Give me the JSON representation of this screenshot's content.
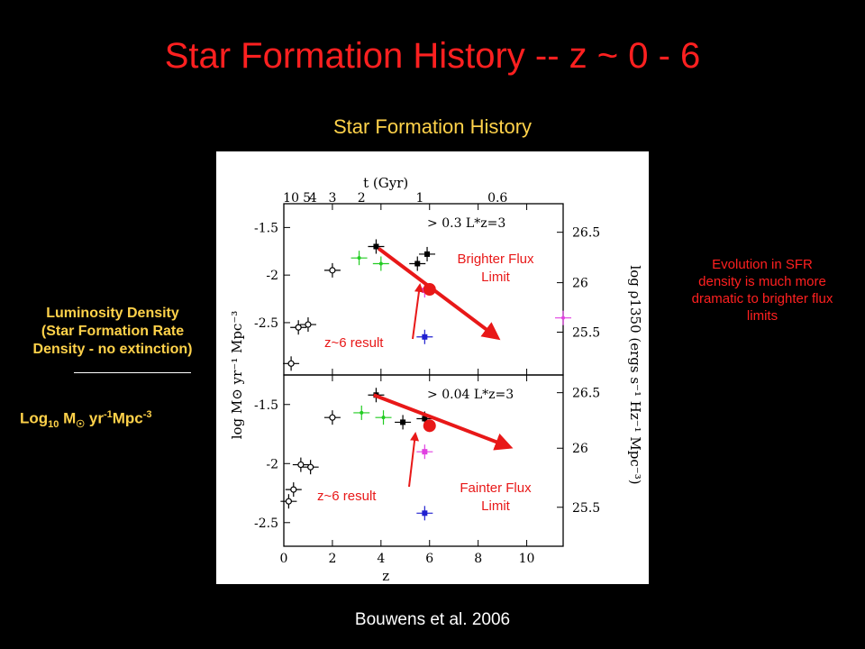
{
  "slide": {
    "title": "Star Formation History -- z ~ 0 - 6",
    "figure_title": "Star Formation History",
    "citation": "Bouwens et al. 2006",
    "left_label_lines": [
      "Luminosity Density",
      "(Star Formation Rate",
      "Density - no extinction)"
    ],
    "left_unit": {
      "log": "Log",
      "log_sub": "10",
      "m": " M",
      "sun": "☉",
      "yr": " yr",
      "yr_exp": "-1",
      "mpc": "Mpc",
      "mpc_exp": "-3"
    },
    "right_note_lines": [
      "Evolution in SFR",
      "density is much more",
      "dramatic to brighter flux",
      "limits"
    ]
  },
  "colors": {
    "title": "#ff2020",
    "yellow": "#ffd24a",
    "arrow": "#e81818",
    "black": "#000000",
    "green": "#22cc22",
    "magenta": "#e040e0",
    "blue": "#2020d0",
    "red": "#e81818"
  },
  "chart_data": {
    "type": "scatter",
    "top_axis": {
      "label": "t (Gyr)",
      "ticks": [
        {
          "t": "10",
          "z": 0.3
        },
        {
          "t": "5",
          "z": 0.95
        },
        {
          "t": "4",
          "z": 1.2
        },
        {
          "t": "3",
          "z": 2.0
        },
        {
          "t": "2",
          "z": 3.2
        },
        {
          "t": "1",
          "z": 5.6
        },
        {
          "t": "0.6",
          "z": 8.8
        }
      ]
    },
    "xlabel": "z",
    "xlim": [
      0,
      11.5
    ],
    "x_ticks": [
      0,
      2,
      4,
      6,
      8,
      10
    ],
    "ylabel_left": "log M⊙ yr⁻¹ Mpc⁻³",
    "ylabel_right": "log ρ1350 (ergs s⁻¹ Hz⁻¹ Mpc⁻³)",
    "panels": [
      {
        "id": "top",
        "label": "> 0.3 L*z=3",
        "ylim": [
          -3.05,
          -1.25
        ],
        "y_ticks_left": [
          "-1.5",
          "-2",
          "-2.5"
        ],
        "y_tick_values_left": [
          -1.5,
          -2,
          -2.5
        ],
        "y_ticks_right": [
          "26.5",
          "26",
          "25.5"
        ],
        "y_tick_values_right": [
          -1.55,
          -2.08,
          -2.6
        ],
        "points": [
          {
            "x": 0.3,
            "y": -2.93,
            "color": "black",
            "style": "open"
          },
          {
            "x": 0.6,
            "y": -2.55,
            "color": "black",
            "style": "open"
          },
          {
            "x": 1.0,
            "y": -2.52,
            "color": "black",
            "style": "open"
          },
          {
            "x": 2.0,
            "y": -1.95,
            "color": "black",
            "style": "open"
          },
          {
            "x": 3.1,
            "y": -1.82,
            "color": "green",
            "style": "cross"
          },
          {
            "x": 3.8,
            "y": -1.7,
            "color": "black",
            "style": "filled"
          },
          {
            "x": 4.0,
            "y": -1.88,
            "color": "green",
            "style": "cross"
          },
          {
            "x": 5.5,
            "y": -1.88,
            "color": "black",
            "style": "filled"
          },
          {
            "x": 5.9,
            "y": -1.78,
            "color": "black",
            "style": "filled"
          },
          {
            "x": 5.8,
            "y": -2.16,
            "color": "magenta",
            "style": "filled"
          },
          {
            "x": 6.0,
            "y": -2.15,
            "color": "red",
            "style": "big"
          },
          {
            "x": 5.8,
            "y": -2.65,
            "color": "blue",
            "style": "filled"
          },
          {
            "x": 11.5,
            "y": -2.45,
            "color": "magenta",
            "style": "cross"
          }
        ]
      },
      {
        "id": "bottom",
        "label": "> 0.04 L*z=3",
        "ylim": [
          -2.7,
          -1.25
        ],
        "y_ticks_left": [
          "-1.5",
          "-2",
          "-2.5"
        ],
        "y_tick_values_left": [
          -1.5,
          -2,
          -2.5
        ],
        "y_ticks_right": [
          "26.5",
          "26",
          "25.5"
        ],
        "y_tick_values_right": [
          -1.4,
          -1.87,
          -2.37
        ],
        "points": [
          {
            "x": 0.2,
            "y": -2.32,
            "color": "black",
            "style": "open"
          },
          {
            "x": 0.4,
            "y": -2.22,
            "color": "black",
            "style": "open"
          },
          {
            "x": 0.7,
            "y": -2.01,
            "color": "black",
            "style": "open"
          },
          {
            "x": 1.1,
            "y": -2.03,
            "color": "black",
            "style": "open"
          },
          {
            "x": 2.0,
            "y": -1.61,
            "color": "black",
            "style": "open"
          },
          {
            "x": 3.2,
            "y": -1.57,
            "color": "green",
            "style": "cross"
          },
          {
            "x": 3.8,
            "y": -1.42,
            "color": "black",
            "style": "filled"
          },
          {
            "x": 4.1,
            "y": -1.61,
            "color": "green",
            "style": "cross"
          },
          {
            "x": 4.9,
            "y": -1.65,
            "color": "black",
            "style": "filled"
          },
          {
            "x": 5.8,
            "y": -1.62,
            "color": "black",
            "style": "filled"
          },
          {
            "x": 6.0,
            "y": -1.68,
            "color": "red",
            "style": "big"
          },
          {
            "x": 5.8,
            "y": -1.9,
            "color": "magenta",
            "style": "filled"
          },
          {
            "x": 5.8,
            "y": -2.42,
            "color": "blue",
            "style": "filled"
          }
        ]
      }
    ],
    "annotations": [
      {
        "panel": "top",
        "lines": [
          "Brighter Flux",
          "Limit"
        ]
      },
      {
        "panel": "top",
        "text": "z~6 result"
      },
      {
        "panel": "bottom",
        "lines": [
          "Fainter Flux",
          "Limit"
        ]
      },
      {
        "panel": "bottom",
        "text": "z~6 result"
      }
    ],
    "trend_arrows": [
      {
        "panel": "top",
        "from": [
          3.9,
          -1.72
        ],
        "to": [
          8.8,
          -2.66
        ]
      },
      {
        "panel": "bottom",
        "from": [
          3.7,
          -1.42
        ],
        "to": [
          9.3,
          -1.86
        ]
      }
    ]
  }
}
